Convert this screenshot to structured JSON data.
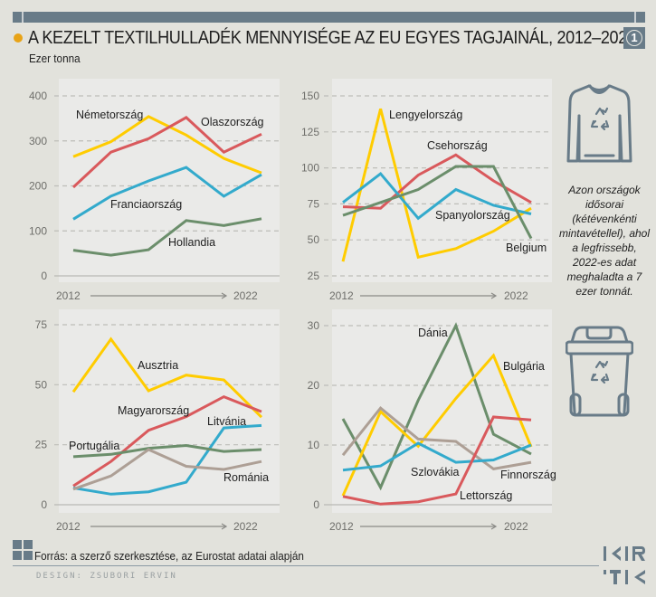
{
  "header": {
    "title": "A KEZELT TEXTILHULLADÉK MENNYISÉGE AZ EU EGYES TAGJAINÁL, 2012–2022",
    "subtitle": "Ezer tonna",
    "badge_number": "1"
  },
  "side_note": "Azon országok idősorai (kétévenkénti mintavétellel), ahol a legfrissebb, 2022-es adat meghaladta a 7 ezer tonnát.",
  "icons": {
    "top": "sweater-recycle-icon",
    "bottom": "recycle-bin-icon"
  },
  "footer": {
    "source": "Forrás: a szerző szerkesztése, az Eurostat adatai alapján",
    "design": "DESIGN: ZSUBORI ERVIN",
    "logo_text": "KRTK"
  },
  "colors": {
    "yellow": "#ffcc00",
    "red": "#d9595c",
    "blue": "#33aacc",
    "green": "#6b8e6b",
    "gray": "#ad9f95",
    "accent_dot": "#e8a317",
    "bar": "#687b88"
  },
  "chart_data": [
    {
      "type": "line",
      "title": "",
      "x": [
        2012,
        2014,
        2016,
        2018,
        2020,
        2022
      ],
      "x_start_label": "2012",
      "x_end_label": "2022",
      "ylim": [
        0,
        400
      ],
      "yticks": [
        0,
        100,
        200,
        300,
        400
      ],
      "ytick_labels": [
        "0",
        "100",
        "200",
        "300",
        "400"
      ],
      "grid": true,
      "series": [
        {
          "name": "Németország",
          "color": "yellow",
          "values": [
            265,
            298,
            354,
            313,
            261,
            229
          ]
        },
        {
          "name": "Olaszország",
          "color": "red",
          "values": [
            197,
            275,
            305,
            352,
            275,
            315
          ]
        },
        {
          "name": "Franciaország",
          "color": "blue",
          "values": [
            126,
            177,
            211,
            241,
            177,
            225
          ]
        },
        {
          "name": "Hollandia",
          "color": "green",
          "values": [
            57,
            46,
            58,
            123,
            112,
            127
          ]
        }
      ]
    },
    {
      "type": "line",
      "title": "",
      "x": [
        2012,
        2014,
        2016,
        2018,
        2020,
        2022
      ],
      "x_start_label": "2012",
      "x_end_label": "2022",
      "ylim": [
        25,
        150
      ],
      "yticks": [
        25,
        50,
        75,
        100,
        125,
        150
      ],
      "ytick_labels": [
        "25",
        "50",
        "75",
        "100",
        "125",
        "150"
      ],
      "grid": true,
      "series": [
        {
          "name": "Lengyelország",
          "color": "yellow",
          "values": [
            35,
            141,
            38,
            44,
            56,
            72
          ]
        },
        {
          "name": "Csehország",
          "color": "red",
          "values": [
            73,
            72,
            95,
            109,
            91,
            76
          ]
        },
        {
          "name": "Spanyolország",
          "color": "blue",
          "values": [
            76,
            96,
            65,
            85,
            74,
            68
          ]
        },
        {
          "name": "Belgium",
          "color": "green",
          "values": [
            67,
            76,
            85,
            101,
            101,
            51
          ]
        }
      ]
    },
    {
      "type": "line",
      "title": "",
      "x": [
        2012,
        2014,
        2016,
        2018,
        2020,
        2022
      ],
      "x_start_label": "2012",
      "x_end_label": "2022",
      "ylim": [
        0,
        75
      ],
      "yticks": [
        0,
        25,
        50,
        75
      ],
      "ytick_labels": [
        "0",
        "25",
        "50",
        "75"
      ],
      "grid": true,
      "series": [
        {
          "name": "Ausztria",
          "color": "yellow",
          "values": [
            47,
            69,
            47.5,
            54,
            52,
            36.5
          ]
        },
        {
          "name": "Magyarország",
          "color": "red",
          "values": [
            7.8,
            18,
            31,
            36.7,
            45,
            38.8
          ]
        },
        {
          "name": "Litvánia",
          "color": "blue",
          "values": [
            7,
            4.4,
            5.4,
            9.4,
            32,
            33
          ]
        },
        {
          "name": "Portugália",
          "color": "green",
          "values": [
            20,
            21,
            23.5,
            24.7,
            22.2,
            23
          ]
        },
        {
          "name": "Románia",
          "color": "gray",
          "values": [
            6.5,
            12,
            23,
            16,
            14.7,
            18
          ]
        }
      ]
    },
    {
      "type": "line",
      "title": "",
      "x": [
        2012,
        2014,
        2016,
        2018,
        2020,
        2022
      ],
      "x_start_label": "2012",
      "x_end_label": "2022",
      "ylim": [
        0,
        30
      ],
      "yticks": [
        0,
        10,
        20,
        30
      ],
      "ytick_labels": [
        "0",
        "10",
        "20",
        "30"
      ],
      "grid": true,
      "series": [
        {
          "name": "Dánia",
          "color": "green",
          "values": [
            14.4,
            2.9,
            17.5,
            30,
            11.8,
            8.5
          ]
        },
        {
          "name": "Bulgária",
          "color": "yellow",
          "values": [
            1.5,
            15.6,
            9.8,
            17.8,
            25,
            9.7
          ]
        },
        {
          "name": "Finnország",
          "color": "gray",
          "values": [
            8.3,
            16.2,
            11,
            10.6,
            6,
            7.1
          ]
        },
        {
          "name": "Szlovákia",
          "color": "blue",
          "values": [
            5.8,
            6.5,
            10.3,
            7.1,
            7.5,
            10
          ]
        },
        {
          "name": "Lettország",
          "color": "red",
          "values": [
            1.4,
            0.1,
            0.5,
            1.8,
            14.7,
            14.2
          ]
        }
      ]
    }
  ]
}
